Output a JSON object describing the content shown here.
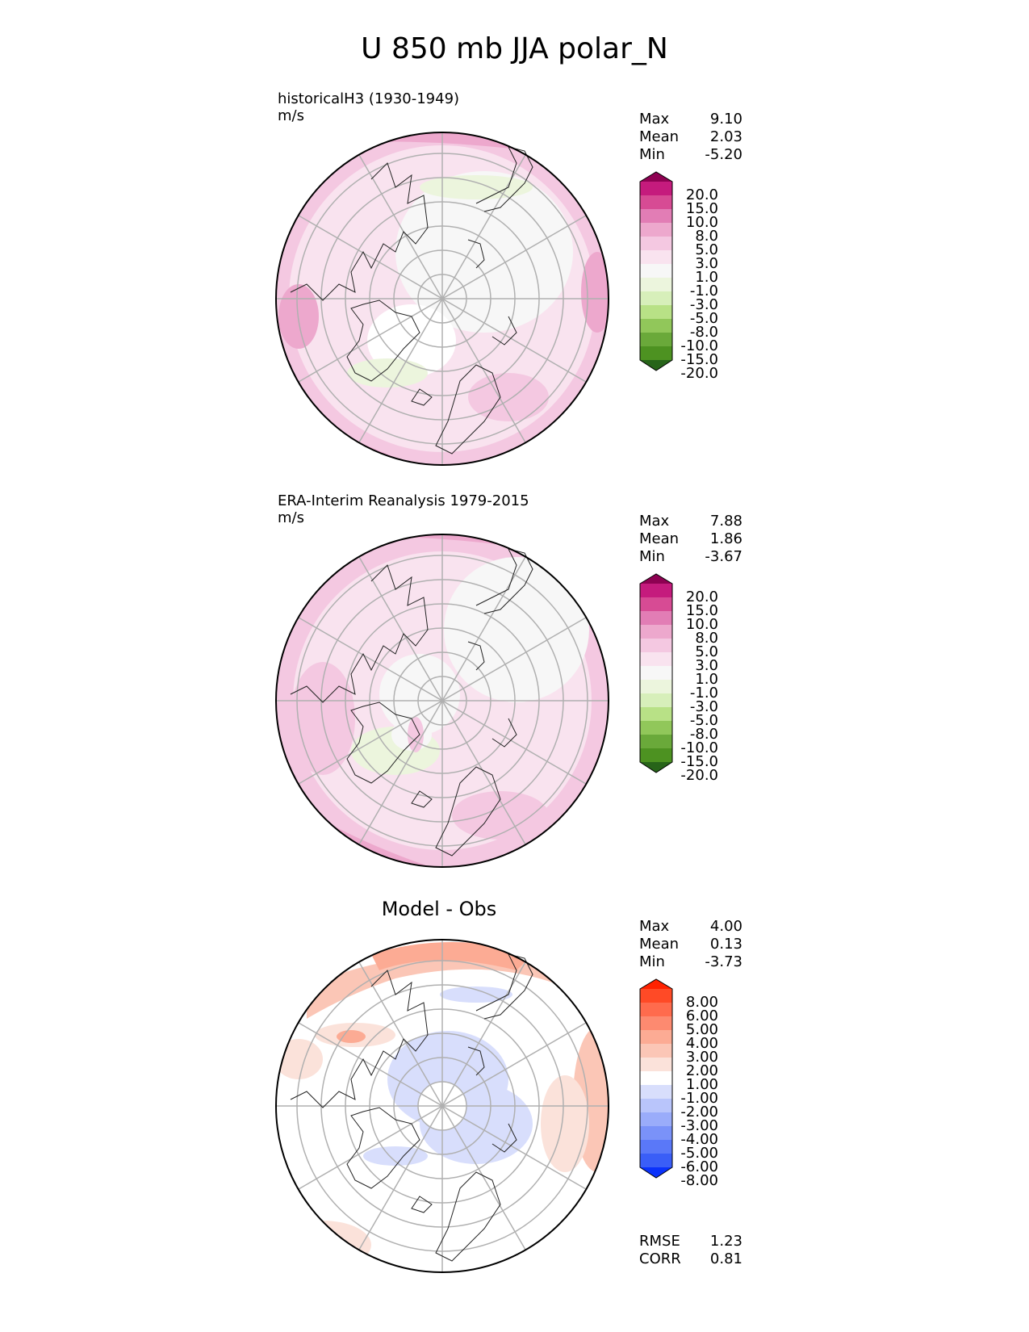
{
  "title": "U 850 mb JJA polar_N",
  "panels": [
    {
      "label_line1": "historicalH3 (1930-1949)",
      "label_line2": "m/s",
      "center_title": "",
      "stats": [
        {
          "name": "Max",
          "value": "9.10"
        },
        {
          "name": "Mean",
          "value": "2.03"
        },
        {
          "name": "Min",
          "value": "-5.20"
        }
      ],
      "colorbar_labels": [
        "20.0",
        "15.0",
        "10.0",
        "8.0",
        "5.0",
        "3.0",
        "1.0",
        "-1.0",
        "-3.0",
        "-5.0",
        "-8.0",
        "-10.0",
        "-15.0",
        "-20.0"
      ],
      "colorbar_colors": [
        "#8e0152",
        "#c51b7d",
        "#d74b94",
        "#e27db5",
        "#eda8cd",
        "#f4c8e1",
        "#f9e3ef",
        "#f7f7f7",
        "#ecf5dd",
        "#d7efba",
        "#b8e186",
        "#91c75a",
        "#6aa93a",
        "#4d9221",
        "#276419"
      ],
      "metrics": []
    },
    {
      "label_line1": "ERA-Interim Reanalysis 1979-2015",
      "label_line2": "m/s",
      "center_title": "",
      "stats": [
        {
          "name": "Max",
          "value": "7.88"
        },
        {
          "name": "Mean",
          "value": "1.86"
        },
        {
          "name": "Min",
          "value": "-3.67"
        }
      ],
      "colorbar_labels": [
        "20.0",
        "15.0",
        "10.0",
        "8.0",
        "5.0",
        "3.0",
        "1.0",
        "-1.0",
        "-3.0",
        "-5.0",
        "-8.0",
        "-10.0",
        "-15.0",
        "-20.0"
      ],
      "colorbar_colors": [
        "#8e0152",
        "#c51b7d",
        "#d74b94",
        "#e27db5",
        "#eda8cd",
        "#f4c8e1",
        "#f9e3ef",
        "#f7f7f7",
        "#ecf5dd",
        "#d7efba",
        "#b8e186",
        "#91c75a",
        "#6aa93a",
        "#4d9221",
        "#276419"
      ],
      "metrics": []
    },
    {
      "label_line1": "",
      "label_line2": "",
      "center_title": "Model - Obs",
      "stats": [
        {
          "name": "Max",
          "value": "4.00"
        },
        {
          "name": "Mean",
          "value": "0.13"
        },
        {
          "name": "Min",
          "value": "-3.73"
        }
      ],
      "colorbar_labels": [
        "8.00",
        "6.00",
        "5.00",
        "4.00",
        "3.00",
        "2.00",
        "1.00",
        "-1.00",
        "-2.00",
        "-3.00",
        "-4.00",
        "-5.00",
        "-6.00",
        "-8.00"
      ],
      "colorbar_colors": [
        "#ff2200",
        "#ff4a26",
        "#ff6b4d",
        "#fd8a70",
        "#fcab94",
        "#fbc6b6",
        "#fbe2da",
        "#ffffff",
        "#d8defc",
        "#b9c5fb",
        "#9aacfa",
        "#7a92f9",
        "#5a78f8",
        "#3a5ef7",
        "#0a32fb"
      ],
      "metrics": [
        {
          "name": "RMSE",
          "value": "1.23"
        },
        {
          "name": "CORR",
          "value": "0.81"
        }
      ]
    }
  ]
}
